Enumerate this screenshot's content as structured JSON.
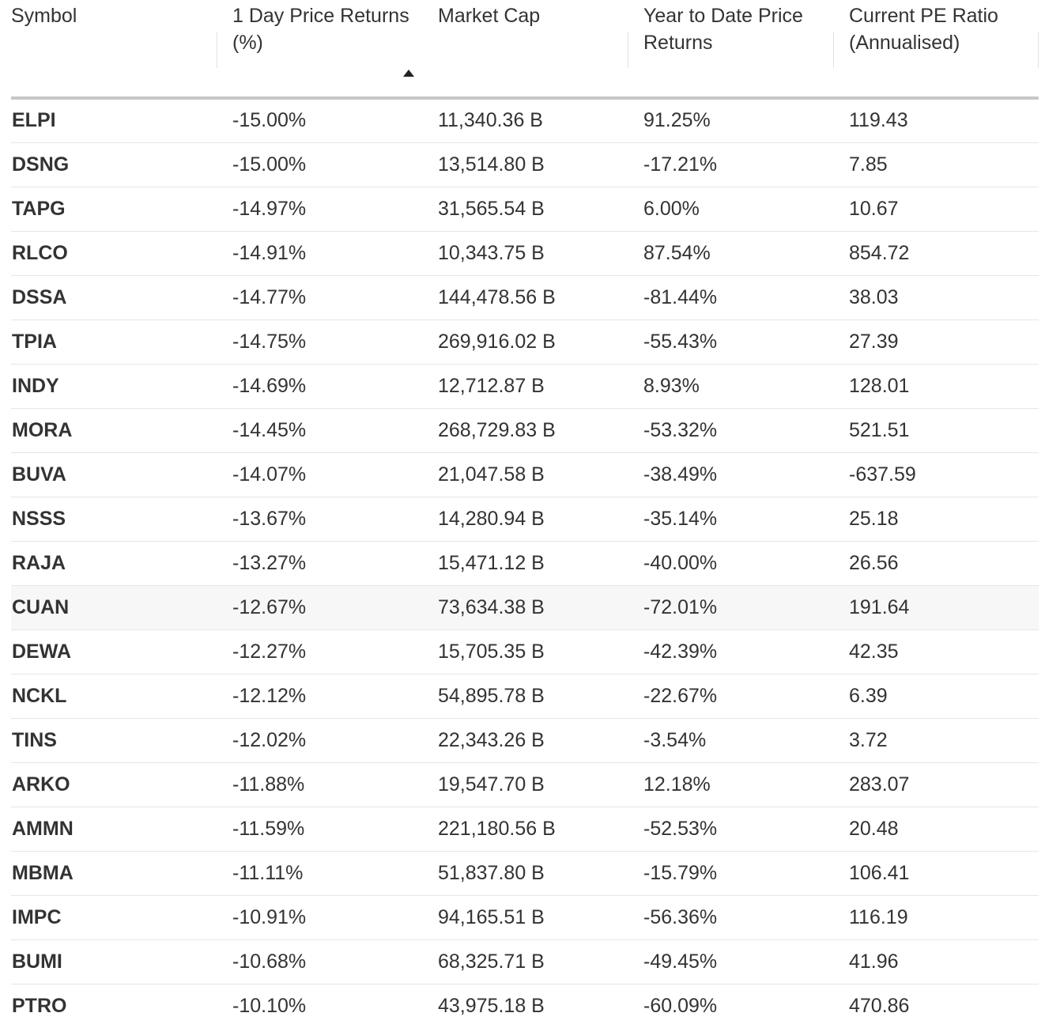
{
  "headers": {
    "symbol": "Symbol",
    "day_return": "1 Day Price Returns (%)",
    "market_cap": "Market Cap",
    "ytd_return": "Year to Date Price Returns",
    "pe_ratio": "Current PE Ratio (Annualised)"
  },
  "sort": {
    "column": "day_return",
    "direction": "ascending",
    "icon": "triangle-up-icon"
  },
  "colors": {
    "negative": "#e0474c",
    "positive": "#1d9c61",
    "header_rule": "#c7c7c7"
  },
  "rows": [
    {
      "symbol": "ELPI",
      "day_return": "-15.00%",
      "market_cap": "11,340.36 B",
      "ytd_return": "91.25%",
      "pe_ratio": "119.43"
    },
    {
      "symbol": "DSNG",
      "day_return": "-15.00%",
      "market_cap": "13,514.80 B",
      "ytd_return": "-17.21%",
      "pe_ratio": "7.85"
    },
    {
      "symbol": "TAPG",
      "day_return": "-14.97%",
      "market_cap": "31,565.54 B",
      "ytd_return": "6.00%",
      "pe_ratio": "10.67"
    },
    {
      "symbol": "RLCO",
      "day_return": "-14.91%",
      "market_cap": "10,343.75 B",
      "ytd_return": "87.54%",
      "pe_ratio": "854.72"
    },
    {
      "symbol": "DSSA",
      "day_return": "-14.77%",
      "market_cap": "144,478.56 B",
      "ytd_return": "-81.44%",
      "pe_ratio": "38.03"
    },
    {
      "symbol": "TPIA",
      "day_return": "-14.75%",
      "market_cap": "269,916.02 B",
      "ytd_return": "-55.43%",
      "pe_ratio": "27.39"
    },
    {
      "symbol": "INDY",
      "day_return": "-14.69%",
      "market_cap": "12,712.87 B",
      "ytd_return": "8.93%",
      "pe_ratio": "128.01"
    },
    {
      "symbol": "MORA",
      "day_return": "-14.45%",
      "market_cap": "268,729.83 B",
      "ytd_return": "-53.32%",
      "pe_ratio": "521.51"
    },
    {
      "symbol": "BUVA",
      "day_return": "-14.07%",
      "market_cap": "21,047.58 B",
      "ytd_return": "-38.49%",
      "pe_ratio": "-637.59"
    },
    {
      "symbol": "NSSS",
      "day_return": "-13.67%",
      "market_cap": "14,280.94 B",
      "ytd_return": "-35.14%",
      "pe_ratio": "25.18"
    },
    {
      "symbol": "RAJA",
      "day_return": "-13.27%",
      "market_cap": "15,471.12 B",
      "ytd_return": "-40.00%",
      "pe_ratio": "26.56"
    },
    {
      "symbol": "CUAN",
      "day_return": "-12.67%",
      "market_cap": "73,634.38 B",
      "ytd_return": "-72.01%",
      "pe_ratio": "191.64"
    },
    {
      "symbol": "DEWA",
      "day_return": "-12.27%",
      "market_cap": "15,705.35 B",
      "ytd_return": "-42.39%",
      "pe_ratio": "42.35"
    },
    {
      "symbol": "NCKL",
      "day_return": "-12.12%",
      "market_cap": "54,895.78 B",
      "ytd_return": "-22.67%",
      "pe_ratio": "6.39"
    },
    {
      "symbol": "TINS",
      "day_return": "-12.02%",
      "market_cap": "22,343.26 B",
      "ytd_return": "-3.54%",
      "pe_ratio": "3.72"
    },
    {
      "symbol": "ARKO",
      "day_return": "-11.88%",
      "market_cap": "19,547.70 B",
      "ytd_return": "12.18%",
      "pe_ratio": "283.07"
    },
    {
      "symbol": "AMMN",
      "day_return": "-11.59%",
      "market_cap": "221,180.56 B",
      "ytd_return": "-52.53%",
      "pe_ratio": "20.48"
    },
    {
      "symbol": "MBMA",
      "day_return": "-11.11%",
      "market_cap": "51,837.80 B",
      "ytd_return": "-15.79%",
      "pe_ratio": "106.41"
    },
    {
      "symbol": "IMPC",
      "day_return": "-10.91%",
      "market_cap": "94,165.51 B",
      "ytd_return": "-56.36%",
      "pe_ratio": "116.19"
    },
    {
      "symbol": "BUMI",
      "day_return": "-10.68%",
      "market_cap": "68,325.71 B",
      "ytd_return": "-49.45%",
      "pe_ratio": "41.96"
    },
    {
      "symbol": "PTRO",
      "day_return": "-10.10%",
      "market_cap": "43,975.18 B",
      "ytd_return": "-60.09%",
      "pe_ratio": "470.86"
    }
  ],
  "highlighted_row": 11
}
